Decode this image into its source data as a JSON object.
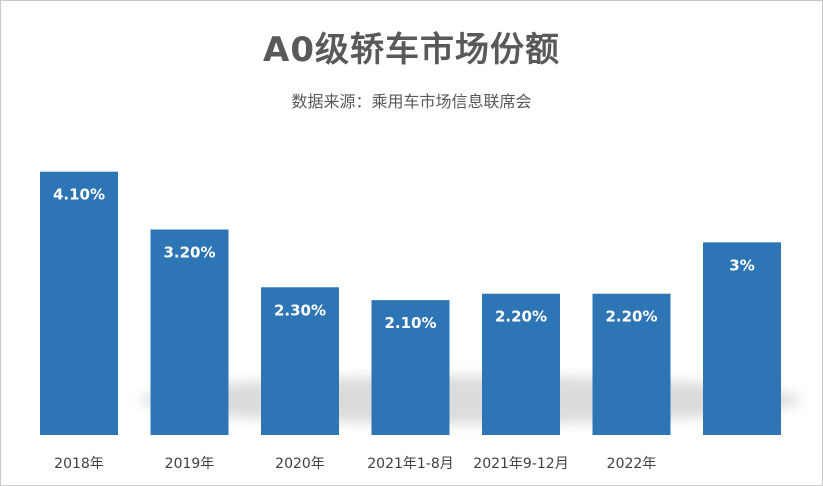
{
  "chart_data": {
    "type": "bar",
    "title": "A0级轿车市场份额",
    "subtitle": "数据来源：乘用车市场信息联席会",
    "categories": [
      "2018年",
      "2019年",
      "2020年",
      "2021年1-8月",
      "2021年9-12月",
      "2022年",
      ""
    ],
    "values": [
      4.1,
      3.2,
      2.3,
      2.1,
      2.2,
      2.2,
      3.0
    ],
    "data_labels": [
      "4.10%",
      "3.20%",
      "2.30%",
      "2.10%",
      "2.20%",
      "2.20%",
      "3%"
    ],
    "ylim": [
      0,
      4.5
    ],
    "xlabel": "",
    "ylabel": "",
    "grid": false,
    "bar_color": "#2e75b6"
  }
}
